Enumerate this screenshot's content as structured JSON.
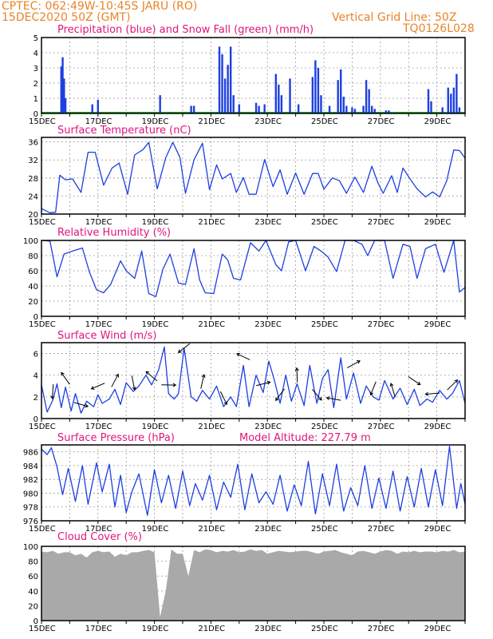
{
  "header": {
    "line1": "CPTEC:   062:49W-10:45S   JARU (RO)",
    "line2": "15DEC2020 50Z (GMT)",
    "grid_note": "Vertical Grid Line: 50Z",
    "code": "TQ0126L028"
  },
  "colors": {
    "header": "#e8842a",
    "titles": "#e0157d",
    "line": "#1d3fe0",
    "bars": "#1d3fe0",
    "snow": "#22aa22",
    "cloud": "#a9a9a9"
  },
  "x_ticks": [
    "15DEC",
    "17DEC",
    "19DEC",
    "21DEC",
    "23DEC",
    "25DEC",
    "27DEC",
    "29DEC"
  ],
  "chart_data": [
    {
      "id": "precip",
      "type": "bar",
      "title": "Precipitation (blue) and Snow Fall (green) (mm/h)",
      "ylim": [
        0,
        5
      ],
      "yticks": [
        "0",
        "1",
        "2",
        "3",
        "4",
        "5"
      ],
      "bars_day_mm": [
        [
          0.7,
          3.1
        ],
        [
          0.75,
          3.7
        ],
        [
          0.8,
          2.3
        ],
        [
          0.85,
          1.0
        ],
        [
          1.8,
          0.6
        ],
        [
          2.0,
          0.9
        ],
        [
          4.2,
          1.2
        ],
        [
          5.3,
          0.5
        ],
        [
          5.4,
          0.5
        ],
        [
          6.3,
          4.4
        ],
        [
          6.4,
          3.9
        ],
        [
          6.5,
          2.3
        ],
        [
          6.6,
          3.2
        ],
        [
          6.7,
          4.4
        ],
        [
          6.8,
          1.2
        ],
        [
          7.0,
          0.6
        ],
        [
          7.6,
          0.7
        ],
        [
          7.7,
          0.5
        ],
        [
          7.9,
          0.6
        ],
        [
          8.3,
          2.6
        ],
        [
          8.4,
          1.9
        ],
        [
          8.5,
          1.2
        ],
        [
          8.8,
          2.3
        ],
        [
          9.1,
          0.6
        ],
        [
          9.6,
          2.4
        ],
        [
          9.7,
          3.5
        ],
        [
          9.8,
          3.0
        ],
        [
          9.9,
          1.2
        ],
        [
          10.2,
          0.5
        ],
        [
          10.5,
          2.2
        ],
        [
          10.6,
          2.9
        ],
        [
          10.7,
          1.1
        ],
        [
          10.8,
          0.5
        ],
        [
          11.0,
          0.4
        ],
        [
          11.1,
          0.3
        ],
        [
          11.4,
          0.5
        ],
        [
          11.5,
          2.2
        ],
        [
          11.6,
          1.6
        ],
        [
          11.7,
          0.5
        ],
        [
          11.8,
          0.3
        ],
        [
          12.2,
          0.2
        ],
        [
          12.3,
          0.2
        ],
        [
          13.7,
          1.6
        ],
        [
          13.8,
          0.8
        ],
        [
          14.2,
          0.4
        ],
        [
          14.4,
          1.7
        ],
        [
          14.5,
          1.3
        ],
        [
          14.6,
          1.7
        ],
        [
          14.7,
          2.6
        ],
        [
          14.8,
          0.4
        ]
      ]
    },
    {
      "id": "temp",
      "type": "line",
      "title": "Surface Temperature (nC)",
      "ylim": [
        20,
        37
      ],
      "yticks": [
        "20",
        "24",
        "28",
        "32",
        "36"
      ],
      "x": [
        0,
        0.3,
        0.5,
        0.65,
        0.85,
        1.1,
        1.4,
        1.65,
        1.9,
        2.2,
        2.5,
        2.75,
        3.05,
        3.3,
        3.6,
        3.8,
        4.1,
        4.4,
        4.65,
        4.9,
        5.1,
        5.4,
        5.7,
        5.95,
        6.2,
        6.4,
        6.7,
        6.9,
        7.15,
        7.35,
        7.6,
        7.9,
        8.2,
        8.45,
        8.7,
        9.0,
        9.3,
        9.6,
        9.8,
        10.0,
        10.3,
        10.55,
        10.8,
        11.1,
        11.4,
        11.7,
        11.9,
        12.1,
        12.4,
        12.6,
        12.8,
        13.05,
        13.3,
        13.6,
        13.85,
        14.1,
        14.35,
        14.6,
        14.8,
        15.0
      ],
      "y": [
        21.2,
        20.3,
        20.4,
        28.6,
        27.6,
        27.8,
        24.8,
        33.7,
        33.7,
        26.4,
        30.2,
        31.3,
        24.4,
        33.1,
        34.3,
        35.9,
        25.6,
        32.5,
        35.9,
        32.6,
        24.6,
        32.0,
        35.7,
        25.4,
        30.9,
        27.8,
        29.0,
        24.8,
        28.1,
        24.4,
        24.4,
        32.1,
        26.1,
        29.8,
        24.4,
        29.1,
        24.4,
        29.0,
        29.0,
        25.5,
        28.0,
        27.4,
        24.6,
        28.2,
        24.8,
        30.6,
        27.1,
        24.6,
        28.5,
        24.8,
        30.2,
        27.8,
        25.6,
        23.8,
        24.9,
        23.8,
        27.4,
        34.2,
        34.1,
        32.4
      ]
    },
    {
      "id": "rh",
      "type": "line",
      "title": "Relative Humidity (%)",
      "ylim": [
        0,
        100
      ],
      "yticks": [
        "0",
        "20",
        "40",
        "60",
        "80",
        "100"
      ],
      "x": [
        0,
        0.3,
        0.55,
        0.8,
        1.1,
        1.45,
        1.7,
        1.95,
        2.2,
        2.45,
        2.8,
        3.0,
        3.3,
        3.55,
        3.8,
        4.05,
        4.3,
        4.55,
        4.85,
        5.1,
        5.4,
        5.6,
        5.8,
        6.1,
        6.4,
        6.6,
        6.8,
        7.05,
        7.4,
        7.7,
        7.95,
        8.3,
        8.5,
        8.75,
        9.0,
        9.35,
        9.65,
        9.9,
        10.15,
        10.45,
        10.75,
        11.05,
        11.35,
        11.55,
        11.8,
        12.15,
        12.45,
        12.8,
        13.05,
        13.3,
        13.6,
        13.95,
        14.25,
        14.6,
        14.8,
        15.0
      ],
      "y": [
        100,
        99,
        52,
        82,
        86,
        90,
        58,
        35,
        31,
        42,
        73,
        60,
        50,
        86,
        30,
        26,
        62,
        82,
        44,
        42,
        89,
        48,
        31,
        30,
        82,
        74,
        50,
        48,
        97,
        86,
        100,
        68,
        60,
        98,
        100,
        60,
        92,
        86,
        78,
        59,
        100,
        100,
        95,
        80,
        100,
        100,
        50,
        95,
        92,
        50,
        89,
        95,
        58,
        100,
        32,
        38
      ]
    },
    {
      "id": "wind",
      "type": "line",
      "title": "Surface Wind (m/s)",
      "ylim": [
        0,
        7
      ],
      "yticks": [
        "0",
        "2",
        "4",
        "6"
      ],
      "x": [
        0,
        0.2,
        0.4,
        0.55,
        0.7,
        0.85,
        1.05,
        1.2,
        1.4,
        1.6,
        1.85,
        2.0,
        2.15,
        2.4,
        2.6,
        2.8,
        3.0,
        3.25,
        3.45,
        3.7,
        3.9,
        4.15,
        4.35,
        4.5,
        4.7,
        4.85,
        5.05,
        5.3,
        5.5,
        5.7,
        5.95,
        6.2,
        6.45,
        6.7,
        6.9,
        7.15,
        7.35,
        7.6,
        7.85,
        8.05,
        8.25,
        8.45,
        8.65,
        8.85,
        9.05,
        9.3,
        9.5,
        9.75,
        9.95,
        10.15,
        10.35,
        10.6,
        10.8,
        11.05,
        11.3,
        11.5,
        11.75,
        11.95,
        12.15,
        12.45,
        12.7,
        12.95,
        13.2,
        13.4,
        13.65,
        13.85,
        14.1,
        14.35,
        14.55,
        14.8,
        15.0
      ],
      "y": [
        3.1,
        0.6,
        1.7,
        3.2,
        1.0,
        2.9,
        0.7,
        2.3,
        0.5,
        1.6,
        1.1,
        2.2,
        1.4,
        1.8,
        2.7,
        1.3,
        3.3,
        2.5,
        3.0,
        4.0,
        3.1,
        4.5,
        6.6,
        2.3,
        1.8,
        2.3,
        6.5,
        2.0,
        1.6,
        2.6,
        1.8,
        3.0,
        1.1,
        2.0,
        1.1,
        4.9,
        1.1,
        4.0,
        2.4,
        5.3,
        3.5,
        1.4,
        4.0,
        1.6,
        3.2,
        1.2,
        4.9,
        1.4,
        3.7,
        4.5,
        1.0,
        5.6,
        1.8,
        4.2,
        1.4,
        3.0,
        2.0,
        1.7,
        3.5,
        1.8,
        2.8,
        1.3,
        2.7,
        1.2,
        1.8,
        1.5,
        2.6,
        1.8,
        2.3,
        3.5,
        1.4
      ]
    },
    {
      "id": "pressure",
      "type": "line",
      "title": "Surface Pressure (hPa)",
      "annotation": "Model Altitude: 227.79  m",
      "ylim": [
        976,
        987
      ],
      "yticks": [
        "976",
        "978",
        "980",
        "982",
        "984",
        "986"
      ],
      "x": [
        0,
        0.2,
        0.35,
        0.55,
        0.75,
        0.95,
        1.2,
        1.45,
        1.65,
        1.95,
        2.15,
        2.4,
        2.6,
        2.8,
        3.0,
        3.2,
        3.45,
        3.75,
        4.0,
        4.25,
        4.5,
        4.75,
        5.0,
        5.25,
        5.45,
        5.7,
        5.95,
        6.2,
        6.45,
        6.7,
        6.95,
        7.2,
        7.45,
        7.7,
        7.95,
        8.2,
        8.45,
        8.7,
        8.95,
        9.2,
        9.45,
        9.7,
        9.95,
        10.2,
        10.45,
        10.7,
        10.95,
        11.2,
        11.45,
        11.7,
        11.95,
        12.2,
        12.45,
        12.7,
        12.95,
        13.2,
        13.45,
        13.7,
        13.95,
        14.2,
        14.45,
        14.7,
        14.85,
        15.0
      ],
      "y": [
        986.4,
        985.6,
        986.6,
        983.8,
        979.8,
        983.6,
        978.8,
        984.0,
        978.4,
        984.4,
        980.2,
        984.2,
        978.0,
        982.6,
        977.2,
        980.2,
        982.8,
        976.8,
        983.4,
        978.6,
        982.6,
        977.8,
        983.2,
        978.2,
        981.4,
        979.0,
        982.6,
        977.6,
        981.6,
        979.4,
        984.2,
        977.6,
        982.8,
        978.6,
        980.2,
        978.4,
        982.6,
        977.4,
        981.2,
        978.2,
        984.6,
        977.0,
        982.8,
        978.2,
        984.2,
        977.4,
        980.8,
        978.2,
        984.0,
        977.8,
        982.2,
        977.8,
        983.2,
        977.4,
        982.4,
        978.0,
        983.6,
        978.0,
        983.4,
        978.2,
        986.8,
        977.8,
        981.4,
        978.4
      ]
    },
    {
      "id": "cloud",
      "type": "area",
      "title": "Cloud Cover (%)",
      "ylim": [
        0,
        100
      ],
      "yticks": [
        "0",
        "20",
        "40",
        "60",
        "80",
        "100"
      ],
      "x": [
        0,
        0.2,
        0.4,
        0.6,
        0.8,
        1.0,
        1.2,
        1.4,
        1.6,
        1.8,
        2.0,
        2.2,
        2.4,
        2.6,
        2.8,
        3.0,
        3.2,
        3.4,
        3.6,
        3.8,
        4.0,
        4.2,
        4.4,
        4.6,
        4.8,
        5.0,
        5.2,
        5.4,
        5.6,
        5.8,
        6.0,
        6.2,
        6.4,
        6.6,
        6.8,
        7.0,
        7.2,
        7.4,
        7.6,
        7.8,
        8.0,
        8.2,
        8.4,
        8.6,
        8.8,
        9.0,
        9.2,
        9.4,
        9.6,
        9.8,
        10.0,
        10.2,
        10.4,
        10.6,
        10.8,
        11.0,
        11.2,
        11.4,
        11.6,
        11.8,
        12.0,
        12.2,
        12.4,
        12.6,
        12.8,
        13.0,
        13.2,
        13.4,
        13.6,
        13.8,
        14.0,
        14.2,
        14.4,
        14.6,
        14.8,
        15.0
      ],
      "y": [
        93,
        92,
        94,
        90,
        92,
        92,
        88,
        90,
        85,
        92,
        94,
        92,
        93,
        86,
        90,
        88,
        92,
        92,
        94,
        95,
        92,
        5,
        40,
        96,
        90,
        90,
        60,
        95,
        92,
        96,
        95,
        92,
        94,
        93,
        95,
        92,
        93,
        96,
        94,
        95,
        90,
        92,
        94,
        93,
        92,
        93,
        94,
        94,
        92,
        90,
        93,
        94,
        95,
        92,
        90,
        88,
        93,
        94,
        92,
        90,
        93,
        95,
        94,
        90,
        93,
        92,
        94,
        92,
        93,
        93,
        92,
        94,
        93,
        95,
        92,
        93
      ]
    }
  ],
  "panel_titles": {
    "precip": "Precipitation (blue) and Snow Fall (green) (mm/h)",
    "temp": "Surface Temperature (nC)",
    "rh": "Relative Humidity (%)",
    "wind": "Surface Wind (m/s)",
    "pressure": "Surface Pressure (hPa)",
    "pressure_note": "Model Altitude: 227.79  m",
    "cloud": "Cloud Cover (%)"
  }
}
